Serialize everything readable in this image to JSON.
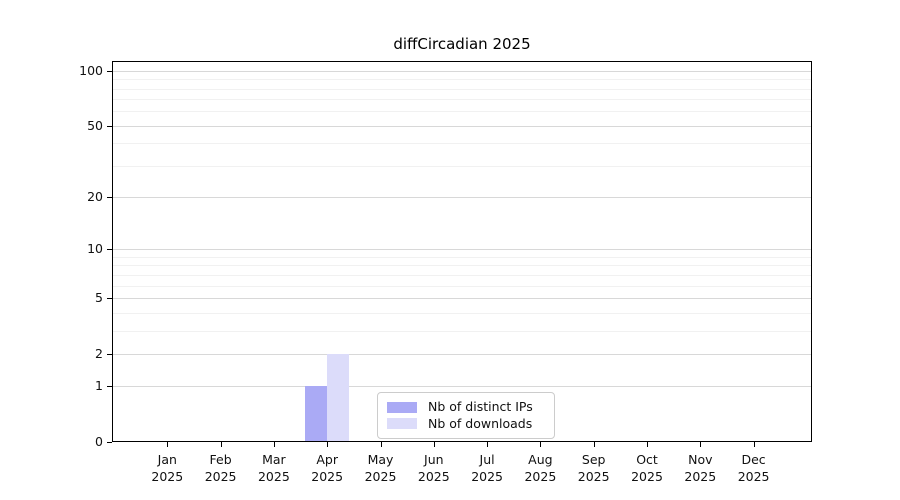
{
  "chart_data": {
    "type": "bar",
    "title": "diffCircadian 2025",
    "categories": [
      "Jan 2025",
      "Feb 2025",
      "Mar 2025",
      "Apr 2025",
      "May 2025",
      "Jun 2025",
      "Jul 2025",
      "Aug 2025",
      "Sep 2025",
      "Oct 2025",
      "Nov 2025",
      "Dec 2025"
    ],
    "series": [
      {
        "name": "Nb of distinct IPs",
        "color": "#aaaaf5",
        "values": [
          0,
          0,
          0,
          1,
          0,
          0,
          0,
          0,
          0,
          0,
          0,
          0
        ]
      },
      {
        "name": "Nb of downloads",
        "color": "#dcdcfa",
        "values": [
          0,
          0,
          0,
          2,
          0,
          0,
          0,
          0,
          0,
          0,
          0,
          0
        ]
      }
    ],
    "y_axis": {
      "scale": "log1p",
      "ticks": [
        0,
        1,
        2,
        5,
        10,
        20,
        50,
        100
      ],
      "minor_gridlines": [
        3,
        4,
        6,
        7,
        8,
        9,
        30,
        40,
        60,
        70,
        80,
        90
      ],
      "range_top": 113
    },
    "grid": {
      "major_color": "#d8d8d8",
      "minor_color": "#f1f1f1"
    },
    "legend": {
      "position": "lower-center"
    },
    "colors": {
      "text": "#111111",
      "spine": "#000000",
      "background": "#ffffff"
    }
  }
}
